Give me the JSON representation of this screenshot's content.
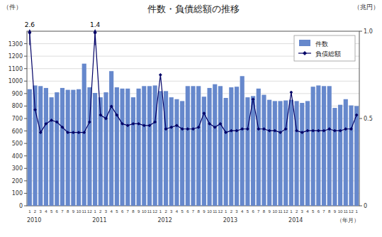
{
  "chart_data": {
    "type": "bar",
    "title": "件数・負債総額の推移",
    "y_label": "（件）",
    "y2_label": "（兆円）",
    "x_label": "（年月）",
    "categories": [
      "1",
      "2",
      "3",
      "4",
      "5",
      "6",
      "7",
      "8",
      "9",
      "10",
      "11",
      "12",
      "1",
      "2",
      "3",
      "4",
      "5",
      "6",
      "7",
      "8",
      "9",
      "10",
      "11",
      "12",
      "1",
      "2",
      "3",
      "4",
      "5",
      "6",
      "7",
      "8",
      "9",
      "10",
      "11",
      "12",
      "1",
      "2",
      "3",
      "4",
      "5",
      "6",
      "7",
      "8",
      "9",
      "10",
      "11",
      "12",
      "1",
      "2",
      "3",
      "4",
      "5",
      "6",
      "7",
      "8",
      "9",
      "10",
      "11",
      "12",
      "1"
    ],
    "category_groups": [
      {
        "label": "2010",
        "start": 0
      },
      {
        "label": "2011",
        "start": 12
      },
      {
        "label": "2012",
        "start": 24
      },
      {
        "label": "2013",
        "start": 36
      },
      {
        "label": "2014",
        "start": 48
      }
    ],
    "series": [
      {
        "name": "件数",
        "type": "bar",
        "color": "#6688cc",
        "values": [
          935,
          965,
          960,
          945,
          870,
          910,
          945,
          930,
          930,
          935,
          1140,
          950,
          905,
          870,
          910,
          1080,
          950,
          940,
          940,
          870,
          940,
          960,
          960,
          965,
          920,
          920,
          870,
          855,
          840,
          960,
          960,
          960,
          875,
          945,
          975,
          960,
          865,
          950,
          955,
          1040,
          870,
          880,
          940,
          890,
          850,
          840,
          840,
          845,
          850,
          840,
          825,
          840,
          955,
          965,
          960,
          960,
          785,
          810,
          855,
          805,
          800
        ]
      },
      {
        "name": "負債総額",
        "type": "line",
        "axis": "y2",
        "color": "#000066",
        "marker": "diamond",
        "values": [
          0.99,
          0.55,
          0.42,
          0.47,
          0.49,
          0.48,
          0.45,
          0.42,
          0.42,
          0.42,
          0.42,
          0.48,
          0.99,
          0.52,
          0.5,
          0.57,
          0.52,
          0.47,
          0.46,
          0.47,
          0.47,
          0.46,
          0.46,
          0.48,
          0.75,
          0.44,
          0.45,
          0.46,
          0.44,
          0.44,
          0.44,
          0.45,
          0.53,
          0.47,
          0.45,
          0.47,
          0.42,
          0.43,
          0.43,
          0.44,
          0.44,
          0.61,
          0.44,
          0.44,
          0.43,
          0.43,
          0.42,
          0.44,
          0.65,
          0.43,
          0.42,
          0.43,
          0.43,
          0.43,
          0.43,
          0.44,
          0.43,
          0.43,
          0.44,
          0.44,
          0.52
        ]
      }
    ],
    "ylim": [
      0,
      1400
    ],
    "yticks": [
      0,
      100,
      200,
      300,
      400,
      500,
      600,
      700,
      800,
      900,
      1000,
      1100,
      1200,
      1300
    ],
    "y2lim": [
      0,
      1.0
    ],
    "y2ticks": [
      0,
      0.5,
      {
        "value": 1.0,
        "label": "1.0"
      }
    ],
    "annotations": [
      {
        "text": "2.6",
        "x": 0
      },
      {
        "text": "1.4",
        "x": 12
      }
    ],
    "grid": true,
    "legend": "upper right"
  }
}
